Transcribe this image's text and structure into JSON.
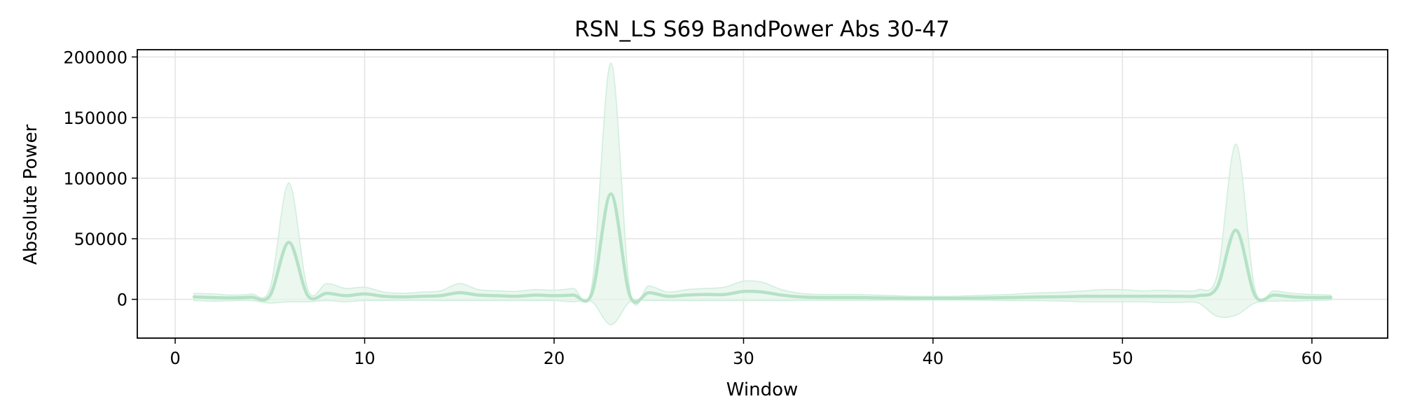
{
  "chart_data": {
    "type": "line",
    "title": "RSN_LS S69 BandPower Abs 30-47",
    "xlabel": "Window",
    "ylabel": "Absolute Power",
    "xlim": [
      -2,
      64
    ],
    "ylim": [
      -32000,
      206000
    ],
    "xticks": [
      0,
      10,
      20,
      30,
      40,
      50,
      60
    ],
    "yticks": [
      0,
      50000,
      100000,
      150000,
      200000
    ],
    "grid": true,
    "legend": "none",
    "colors": {
      "line": "#b5e2c6",
      "band": "#e4f4ea",
      "band_edge": "#cfeedd"
    },
    "series": [
      {
        "x": [
          1,
          2,
          3,
          4,
          5,
          6,
          7,
          8,
          9,
          10,
          11,
          12,
          13,
          14,
          15,
          16,
          17,
          18,
          19,
          20,
          21,
          22,
          23,
          24,
          25,
          26,
          27,
          28,
          29,
          30,
          31,
          32,
          33,
          34,
          35,
          36,
          37,
          38,
          39,
          40,
          41,
          42,
          43,
          44,
          45,
          46,
          47,
          48,
          49,
          50,
          51,
          52,
          53,
          54,
          55,
          56,
          57,
          58,
          59,
          60,
          61
        ],
        "mean": [
          2000,
          1500,
          1200,
          1800,
          3000,
          47000,
          3000,
          5000,
          3000,
          4500,
          2500,
          2000,
          2500,
          3000,
          5500,
          3500,
          3000,
          2500,
          3500,
          3000,
          3500,
          5000,
          87000,
          3000,
          5500,
          2500,
          3500,
          4000,
          4000,
          6500,
          6000,
          3500,
          2000,
          1500,
          1500,
          1500,
          1200,
          1000,
          800,
          800,
          800,
          1000,
          1200,
          1500,
          1800,
          2000,
          2200,
          2500,
          2500,
          2500,
          2500,
          2500,
          2500,
          3000,
          10000,
          57000,
          3000,
          3500,
          2000,
          1500,
          1500
        ],
        "upper": [
          5000,
          4500,
          3500,
          4500,
          9000,
          96000,
          8000,
          13000,
          9000,
          10000,
          6000,
          5000,
          6000,
          7000,
          13000,
          8000,
          7000,
          6500,
          8000,
          7500,
          9000,
          12000,
          195000,
          8000,
          11000,
          6000,
          8000,
          9000,
          10000,
          15000,
          14000,
          8000,
          5000,
          4000,
          4000,
          4000,
          3500,
          3000,
          2500,
          2500,
          2500,
          3000,
          3500,
          4000,
          5000,
          5500,
          6000,
          7000,
          8000,
          8000,
          7000,
          7500,
          7000,
          8000,
          20000,
          128000,
          8000,
          7000,
          5000,
          4000,
          3500
        ],
        "lower": [
          -1000,
          -1500,
          -1200,
          -1000,
          -3000,
          -2000,
          -2000,
          -1000,
          -2000,
          -1000,
          -1000,
          -800,
          -800,
          -1000,
          -1000,
          -1000,
          -1000,
          -1000,
          -1000,
          -1000,
          -2000,
          -2000,
          -21000,
          -2000,
          -1000,
          -1000,
          -1000,
          -1000,
          -1000,
          -1000,
          -1000,
          -1000,
          -800,
          -800,
          -800,
          -800,
          -800,
          -600,
          -600,
          -500,
          -500,
          -600,
          -800,
          -1000,
          -1000,
          -1200,
          -1500,
          -2000,
          -2000,
          -2000,
          -2000,
          -2500,
          -2500,
          -3000,
          -14000,
          -13000,
          -3000,
          -1500,
          -1500,
          -1000,
          -500
        ]
      }
    ]
  }
}
